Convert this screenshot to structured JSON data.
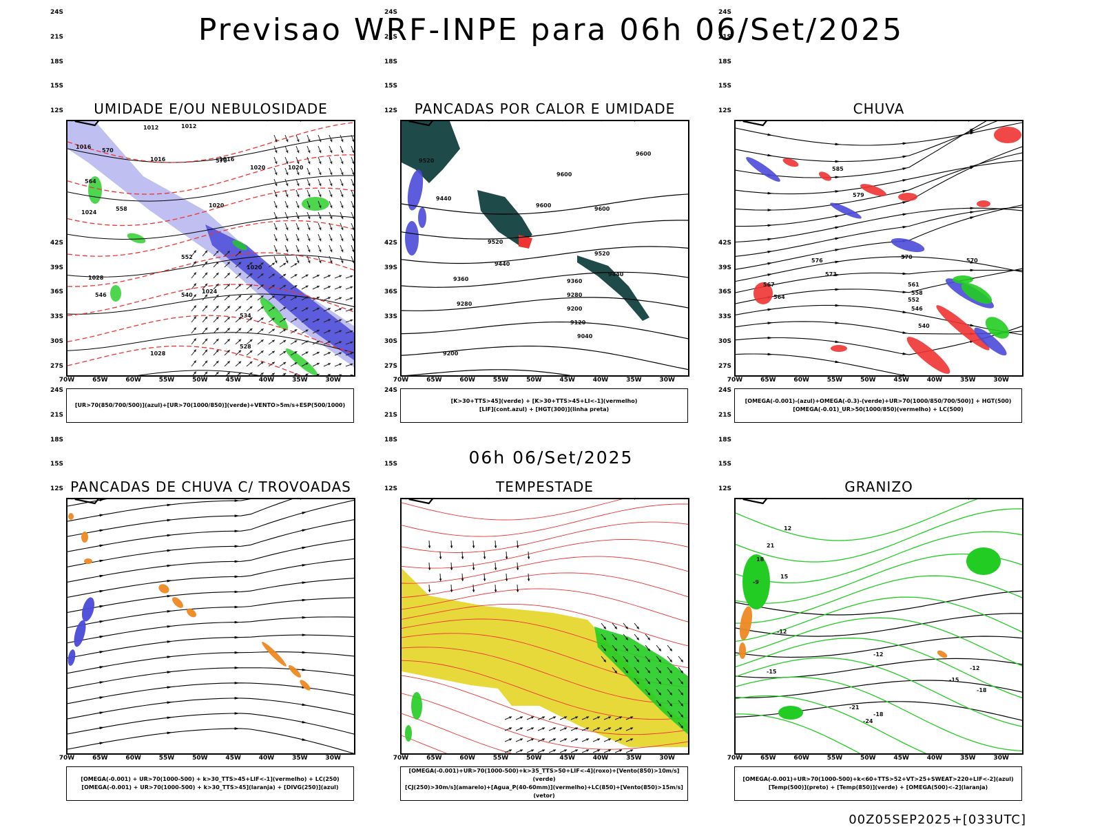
{
  "header": {
    "title": "Previsao WRF-INPE  para 06h 06/Set/2025"
  },
  "subtitle": "06h 06/Set/2025",
  "footer": "00Z05SEP2025+[033UTC]",
  "axes": {
    "lat_labels": [
      "12S",
      "15S",
      "18S",
      "21S",
      "24S",
      "27S",
      "30S",
      "33S",
      "36S",
      "39S",
      "42S"
    ],
    "lon_labels": [
      "70W",
      "65W",
      "60W",
      "55W",
      "50W",
      "45W",
      "40W",
      "35W",
      "30W"
    ]
  },
  "colors": {
    "blue": "#4a4ad8",
    "light_blue": "#b8b8f0",
    "green": "#22cc22",
    "red": "#ee3333",
    "orange": "#ee8822",
    "dark_teal": "#1f4a4a",
    "yellow": "#e6d62a",
    "black": "#000000"
  },
  "panels": [
    {
      "title": "UMIDADE E/OU NEBULOSIDADE",
      "legend": [
        "[UR>70(850/700/500)](azul)+[UR>70(1000/850)](verde)+VENTO>5m/s+ESP(500/1000)"
      ],
      "contour_labels": [
        "1012",
        "1012",
        "1016",
        "1016",
        "1016",
        "1020",
        "1020",
        "1020",
        "1020",
        "1024",
        "1024",
        "1028",
        "1028",
        "570",
        "570",
        "564",
        "558",
        "552",
        "546",
        "540",
        "534",
        "528"
      ]
    },
    {
      "title": "PANCADAS POR CALOR E UMIDADE",
      "legend": [
        "[K>30+TTS>45](verde) + [K>30+TTS>45+LI<-1](vermelho)",
        "[LIF](cont.azul) + [HGT(300)](linha preta)"
      ],
      "contour_labels": [
        "9600",
        "9600",
        "9600",
        "9600",
        "9520",
        "9520",
        "9520",
        "9440",
        "9440",
        "9440",
        "9360",
        "9360",
        "9280",
        "9280",
        "9200",
        "9200",
        "9120",
        "9040"
      ]
    },
    {
      "title": "CHUVA",
      "legend": [
        "[OMEGA(-0.001)-(azul)+OMEGA(-0.3)-(verde)+UR>70(1000/850/700/500)] + HGT(500)",
        "[OMEGA(-0.01)_UR>50(1000/850)(vermelho) + LC(500)"
      ],
      "contour_labels": [
        "585",
        "579",
        "576",
        "573",
        "570",
        "567",
        "564",
        "561",
        "558",
        "552",
        "546",
        "540",
        "570"
      ]
    },
    {
      "title": "PANCADAS DE CHUVA C/ TROVOADAS",
      "legend": [
        "[OMEGA(-0.001) + UR>70(1000-500) + k>30_TTS>45+LIF<-1](vermelho) + LC(250)",
        "[OMEGA(-0.001) + UR>70(1000-500) + k>30_TTS>45](laranja) + [DIVG(250)](azul)"
      ],
      "contour_labels": []
    },
    {
      "title": "TEMPESTADE",
      "legend": [
        "[OMEGA(-0.001)+UR>70(1000-500)+k>35_TTS>50+LIF<-4](roxo)+[Vento(850)>10m/s](verde)",
        "[CJ(250)>30m/s](amarelo)+[Agua_P(40-60mm)](vermelho)+LC(850)+[Vento(850)>15m/s](vetor)"
      ],
      "contour_labels": []
    },
    {
      "title": "GRANIZO",
      "legend": [
        "[OMEGA(-0.001)+UR>70(1000-500)+k<60+TTS>52+VT>25+SWEAT>220+LIF<-2](azul)",
        "[Temp(500)](preto) + [Temp(850)](verde) + [OMEGA(500)<-2](laranja)"
      ],
      "contour_labels": [
        "-9",
        "-12",
        "-12",
        "-12",
        "-15",
        "-15",
        "-18",
        "-18",
        "-21",
        "-24",
        "21",
        "18",
        "15",
        "12"
      ]
    }
  ]
}
